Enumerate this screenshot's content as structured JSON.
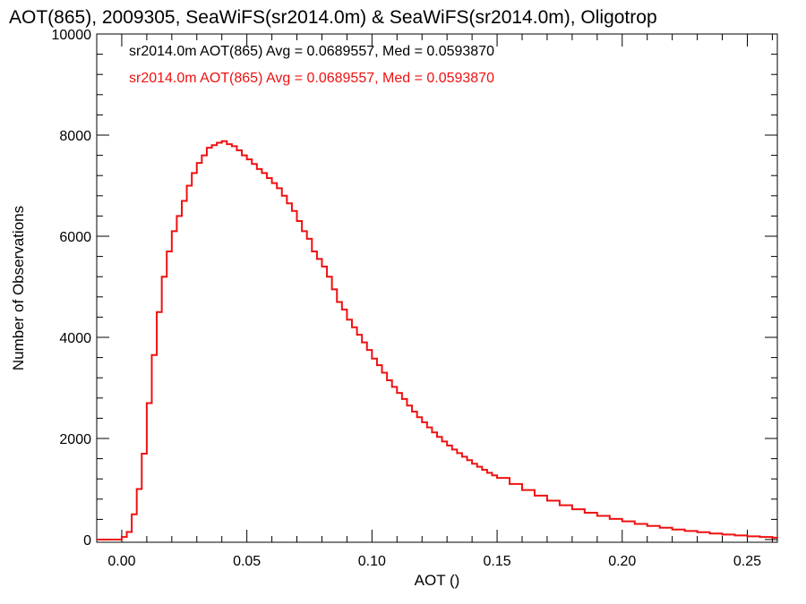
{
  "chart_data": {
    "type": "line",
    "title": "AOT(865), 2009305, SeaWiFS(sr2014.0m) & SeaWiFS(sr2014.0m), Oligotrop",
    "xlabel": "AOT ()",
    "ylabel": "Number of Observations",
    "xlim": [
      -0.01,
      0.262
    ],
    "ylim": [
      0,
      10000
    ],
    "x_ticks": [
      0.0,
      0.05,
      0.1,
      0.15,
      0.2,
      0.25
    ],
    "x_tick_labels": [
      "0.00",
      "0.05",
      "0.10",
      "0.15",
      "0.20",
      "0.25"
    ],
    "y_ticks": [
      0,
      2000,
      4000,
      6000,
      8000,
      10000
    ],
    "y_tick_labels": [
      "0",
      "2000",
      "4000",
      "6000",
      "8000",
      "10000"
    ],
    "grid": false,
    "legend_placement": "top-left",
    "legend": [
      {
        "text": "sr2014.0m AOT(865) Avg = 0.0689557, Med = 0.0593870",
        "color": "#000000"
      },
      {
        "text": "sr2014.0m AOT(865) Avg = 0.0689557, Med = 0.0593870",
        "color": "#ee1111"
      }
    ],
    "series": [
      {
        "color": "#ee1111",
        "style": "step",
        "x": [
          -0.01,
          -0.002,
          0.0,
          0.002,
          0.004,
          0.006,
          0.008,
          0.01,
          0.012,
          0.014,
          0.016,
          0.018,
          0.02,
          0.022,
          0.024,
          0.026,
          0.028,
          0.03,
          0.032,
          0.034,
          0.036,
          0.038,
          0.04,
          0.042,
          0.044,
          0.046,
          0.048,
          0.05,
          0.052,
          0.054,
          0.056,
          0.058,
          0.06,
          0.062,
          0.064,
          0.066,
          0.068,
          0.07,
          0.072,
          0.074,
          0.076,
          0.078,
          0.08,
          0.082,
          0.084,
          0.086,
          0.088,
          0.09,
          0.092,
          0.094,
          0.096,
          0.098,
          0.1,
          0.102,
          0.104,
          0.106,
          0.108,
          0.11,
          0.112,
          0.114,
          0.116,
          0.118,
          0.12,
          0.122,
          0.124,
          0.126,
          0.128,
          0.13,
          0.132,
          0.134,
          0.136,
          0.138,
          0.14,
          0.142,
          0.144,
          0.146,
          0.148,
          0.15,
          0.155,
          0.16,
          0.165,
          0.17,
          0.175,
          0.18,
          0.185,
          0.19,
          0.195,
          0.2,
          0.205,
          0.21,
          0.215,
          0.22,
          0.225,
          0.23,
          0.235,
          0.24,
          0.245,
          0.25,
          0.255,
          0.26,
          0.262
        ],
        "y": [
          0,
          0,
          50,
          150,
          500,
          1000,
          1700,
          2700,
          3650,
          4500,
          5200,
          5700,
          6100,
          6400,
          6700,
          7000,
          7250,
          7450,
          7600,
          7750,
          7800,
          7850,
          7880,
          7820,
          7780,
          7700,
          7600,
          7520,
          7430,
          7330,
          7250,
          7150,
          7050,
          6950,
          6800,
          6650,
          6500,
          6300,
          6100,
          5950,
          5700,
          5550,
          5400,
          5200,
          4950,
          4700,
          4550,
          4350,
          4200,
          4050,
          3900,
          3750,
          3580,
          3450,
          3300,
          3150,
          3020,
          2900,
          2780,
          2650,
          2530,
          2420,
          2320,
          2220,
          2120,
          2030,
          1940,
          1860,
          1780,
          1710,
          1640,
          1570,
          1500,
          1440,
          1380,
          1320,
          1270,
          1220,
          1100,
          980,
          870,
          770,
          680,
          600,
          530,
          470,
          410,
          360,
          310,
          270,
          235,
          200,
          170,
          145,
          120,
          100,
          82,
          65,
          50,
          38,
          30
        ]
      }
    ]
  }
}
